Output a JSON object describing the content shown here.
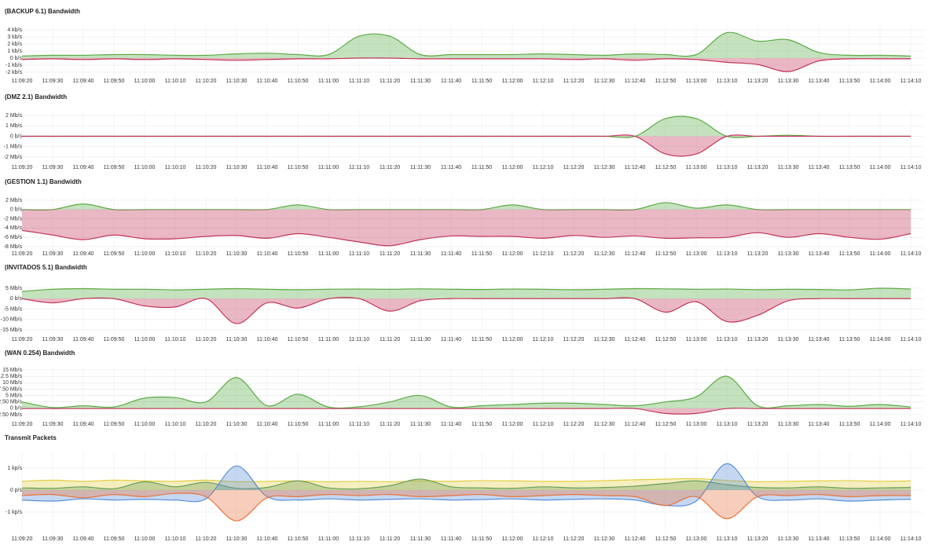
{
  "chart_data": [
    {
      "type": "area",
      "title": "(BACKUP 6.1) Bandwidth",
      "categories": [
        "11:09:20",
        "11:09:30",
        "11:09:40",
        "11:09:50",
        "11:10:00",
        "11:10:10",
        "11:10:20",
        "11:10:30",
        "11:10:40",
        "11:10:50",
        "11:11:00",
        "11:11:10",
        "11:11:20",
        "11:11:30",
        "11:11:40",
        "11:11:50",
        "11:12:00",
        "11:12:10",
        "11:12:20",
        "11:12:30",
        "11:12:40",
        "11:12:50",
        "11:13:00",
        "11:13:10",
        "11:13:20",
        "11:13:30",
        "11:13:40",
        "11:13:50",
        "11:14:00",
        "11:14:10"
      ],
      "series": [
        {
          "color": "#5aac44",
          "values": [
            0.3,
            0.4,
            0.4,
            0.5,
            0.5,
            0.4,
            0.4,
            0.6,
            0.7,
            0.5,
            0.5,
            3.1,
            3.1,
            0.5,
            0.5,
            0.5,
            0.5,
            0.6,
            0.5,
            0.4,
            0.6,
            0.5,
            0.5,
            3.6,
            2.4,
            2.6,
            0.8,
            0.4,
            0.4,
            0.3
          ]
        },
        {
          "color": "#c2345a",
          "values": [
            -0.2,
            -0.1,
            -0.2,
            -0.1,
            -0.2,
            -0.1,
            -0.2,
            -0.3,
            -0.2,
            -0.1,
            -0.1,
            0,
            0,
            -0.1,
            -0.1,
            -0.1,
            -0.1,
            -0.1,
            -0.2,
            -0.1,
            -0.3,
            -0.1,
            -0.2,
            -0.6,
            -0.9,
            -1.9,
            -0.4,
            -0.1,
            -0.1,
            -0.1
          ]
        }
      ],
      "ylim": [
        -2,
        4
      ],
      "yticks": [
        {
          "value": 4,
          "label": "4 kb/s"
        },
        {
          "value": 3,
          "label": "3 kb/s"
        },
        {
          "value": 2,
          "label": "2 kb/s"
        },
        {
          "value": 1,
          "label": "1 kb/s"
        },
        {
          "value": 0,
          "label": "0 b/s"
        },
        {
          "value": -1,
          "label": "-1 kb/s"
        },
        {
          "value": -2,
          "label": "-2 kb/s"
        }
      ],
      "grid": true
    },
    {
      "type": "area",
      "title": "(DMZ 2.1) Bandwidth",
      "categories": [
        "11:09:20",
        "11:09:30",
        "11:09:40",
        "11:09:50",
        "11:10:00",
        "11:10:10",
        "11:10:20",
        "11:10:30",
        "11:10:40",
        "11:10:50",
        "11:11:00",
        "11:11:10",
        "11:11:20",
        "11:11:30",
        "11:11:40",
        "11:11:50",
        "11:12:00",
        "11:12:10",
        "11:12:20",
        "11:12:30",
        "11:12:40",
        "11:12:50",
        "11:13:00",
        "11:13:10",
        "11:13:20",
        "11:13:30",
        "11:13:40",
        "11:13:50",
        "11:14:00",
        "11:14:10"
      ],
      "series": [
        {
          "color": "#5aac44",
          "values": [
            0,
            0,
            0,
            0,
            0,
            0,
            0,
            0,
            0,
            0,
            0,
            0,
            0,
            0,
            0,
            0,
            0,
            0,
            0,
            0,
            0,
            1.7,
            1.7,
            0,
            0,
            0.1,
            0,
            0,
            0,
            0
          ]
        },
        {
          "color": "#c2345a",
          "values": [
            0,
            0,
            0,
            0,
            0,
            0,
            0,
            0,
            0,
            0,
            0,
            0,
            0,
            0,
            0,
            0,
            0,
            0,
            0,
            0,
            0,
            -1.7,
            -1.7,
            0,
            0,
            0,
            0,
            0,
            0,
            0
          ]
        }
      ],
      "ylim": [
        -2,
        2
      ],
      "yticks": [
        {
          "value": 2,
          "label": "2 Mb/s"
        },
        {
          "value": 1,
          "label": "1 Mb/s"
        },
        {
          "value": 0,
          "label": "0 b/s"
        },
        {
          "value": -1,
          "label": "-1 Mb/s"
        },
        {
          "value": -2,
          "label": "-2 Mb/s"
        }
      ],
      "grid": true
    },
    {
      "type": "area",
      "title": "(GESTION 1.1) Bandwidth",
      "categories": [
        "11:09:20",
        "11:09:30",
        "11:09:40",
        "11:09:50",
        "11:10:00",
        "11:10:10",
        "11:10:20",
        "11:10:30",
        "11:10:40",
        "11:10:50",
        "11:11:00",
        "11:11:10",
        "11:11:20",
        "11:11:30",
        "11:11:40",
        "11:11:50",
        "11:12:00",
        "11:12:10",
        "11:12:20",
        "11:12:30",
        "11:12:40",
        "11:12:50",
        "11:13:00",
        "11:13:10",
        "11:13:20",
        "11:13:30",
        "11:13:40",
        "11:13:50",
        "11:14:00",
        "11:14:10"
      ],
      "series": [
        {
          "color": "#5aac44",
          "values": [
            0,
            0,
            1.2,
            0,
            0,
            0,
            0,
            0,
            0,
            1.0,
            0,
            0,
            0,
            0,
            0,
            0,
            1.0,
            0,
            0,
            0,
            0,
            1.5,
            0.3,
            1.0,
            0,
            0,
            0,
            0,
            0,
            0
          ]
        },
        {
          "color": "#c2345a",
          "values": [
            -4.5,
            -5.5,
            -6.5,
            -5.5,
            -6.3,
            -6.3,
            -5.8,
            -5.6,
            -6.2,
            -5.2,
            -6.0,
            -7.0,
            -7.8,
            -6.5,
            -5.7,
            -5.8,
            -5.8,
            -6.2,
            -5.6,
            -6.0,
            -5.7,
            -6.2,
            -6.1,
            -6.0,
            -5.0,
            -6.0,
            -5.2,
            -6.0,
            -6.4,
            -5.2
          ]
        }
      ],
      "ylim": [
        -8,
        2
      ],
      "yticks": [
        {
          "value": 2,
          "label": "2 Mb/s"
        },
        {
          "value": 0,
          "label": "0 b/s"
        },
        {
          "value": -2,
          "label": "-2 Mb/s"
        },
        {
          "value": -4,
          "label": "-4 Mb/s"
        },
        {
          "value": -6,
          "label": "-6 Mb/s"
        },
        {
          "value": -8,
          "label": "-8 Mb/s"
        }
      ],
      "grid": true
    },
    {
      "type": "area",
      "title": "(INVITADOS 5.1) Bandwidth",
      "categories": [
        "11:09:20",
        "11:09:30",
        "11:09:40",
        "11:09:50",
        "11:10:00",
        "11:10:10",
        "11:10:20",
        "11:10:30",
        "11:10:40",
        "11:10:50",
        "11:11:00",
        "11:11:10",
        "11:11:20",
        "11:11:30",
        "11:11:40",
        "11:11:50",
        "11:12:00",
        "11:12:10",
        "11:12:20",
        "11:12:30",
        "11:12:40",
        "11:12:50",
        "11:13:00",
        "11:13:10",
        "11:13:20",
        "11:13:30",
        "11:13:40",
        "11:13:50",
        "11:14:00",
        "11:14:10"
      ],
      "series": [
        {
          "color": "#5aac44",
          "values": [
            3.5,
            4.5,
            4.8,
            4.5,
            4.5,
            4.2,
            4.5,
            4.8,
            4.5,
            4.3,
            4.5,
            4.6,
            4.5,
            4.7,
            4.5,
            4.4,
            4.6,
            4.5,
            4.3,
            4.5,
            4.8,
            4.7,
            4.5,
            4.6,
            4.3,
            4.5,
            4.4,
            4.2,
            5.0,
            4.6
          ]
        },
        {
          "color": "#c2345a",
          "values": [
            0,
            -2,
            0,
            0,
            -3.5,
            -4,
            0,
            -12,
            -2,
            -4.5,
            0,
            0,
            -6,
            -1,
            0,
            0,
            0,
            0,
            0,
            0,
            0,
            -6.5,
            -1.5,
            -11,
            -8,
            -1,
            0,
            0,
            0,
            0
          ]
        }
      ],
      "ylim": [
        -15,
        5
      ],
      "yticks": [
        {
          "value": 5,
          "label": "5 Mb/s"
        },
        {
          "value": 0,
          "label": "0 b/s"
        },
        {
          "value": -5,
          "label": "-5 Mb/s"
        },
        {
          "value": -10,
          "label": "-10 Mb/s"
        },
        {
          "value": -15,
          "label": "-15 Mb/s"
        }
      ],
      "grid": true
    },
    {
      "type": "area",
      "title": "(WAN 0.254) Bandwidth",
      "categories": [
        "11:09:20",
        "11:09:30",
        "11:09:40",
        "11:09:50",
        "11:10:00",
        "11:10:10",
        "11:10:20",
        "11:10:30",
        "11:10:40",
        "11:10:50",
        "11:11:00",
        "11:11:10",
        "11:11:20",
        "11:11:30",
        "11:11:40",
        "11:11:50",
        "11:12:00",
        "11:12:10",
        "11:12:20",
        "11:12:30",
        "11:12:40",
        "11:12:50",
        "11:13:00",
        "11:13:10",
        "11:13:20",
        "11:13:30",
        "11:13:40",
        "11:13:50",
        "11:14:00",
        "11:14:10"
      ],
      "series": [
        {
          "color": "#5aac44",
          "values": [
            2.5,
            0.3,
            1.0,
            0.5,
            4.0,
            4.2,
            2.5,
            12,
            1.0,
            5.5,
            0.5,
            0.6,
            2.5,
            5,
            0.5,
            1.0,
            1.5,
            2.0,
            2.0,
            1.5,
            1.0,
            2.5,
            4.5,
            12.5,
            1.0,
            1.0,
            1.5,
            0.8,
            1.5,
            0.5
          ]
        },
        {
          "color": "#c2345a",
          "values": [
            -0.1,
            -0.1,
            -0.1,
            -0.1,
            -0.1,
            -0.1,
            -0.1,
            -0.1,
            -0.1,
            -0.1,
            -0.1,
            -0.1,
            -0.1,
            -0.1,
            -0.1,
            -0.1,
            -0.1,
            -0.1,
            -0.1,
            -0.1,
            -0.1,
            -2,
            -2,
            -0.1,
            -0.1,
            -0.1,
            -0.1,
            -0.1,
            -0.1,
            -0.1
          ]
        }
      ],
      "ylim": [
        -2.5,
        15
      ],
      "yticks": [
        {
          "value": 15,
          "label": "15 Mb/s"
        },
        {
          "value": 12.5,
          "label": "12.5 Mb/s"
        },
        {
          "value": 10,
          "label": "10 Mb/s"
        },
        {
          "value": 7.5,
          "label": "7.50 Mb/s"
        },
        {
          "value": 5,
          "label": "5 Mb/s"
        },
        {
          "value": 2.5,
          "label": "2.50 Mb/s"
        },
        {
          "value": 0,
          "label": "0 b/s"
        },
        {
          "value": -2.5,
          "label": "-2.50 Mb/s"
        }
      ],
      "grid": true
    },
    {
      "type": "area",
      "title": "Transmit Packets",
      "categories": [
        "11:09:20",
        "11:09:30",
        "11:09:40",
        "11:09:50",
        "11:10:00",
        "11:10:10",
        "11:10:20",
        "11:10:30",
        "11:10:40",
        "11:10:50",
        "11:11:00",
        "11:11:10",
        "11:11:20",
        "11:11:30",
        "11:11:40",
        "11:11:50",
        "11:12:00",
        "11:12:10",
        "11:12:20",
        "11:12:30",
        "11:12:40",
        "11:12:50",
        "11:13:00",
        "11:13:10",
        "11:13:20",
        "11:13:30",
        "11:13:40",
        "11:13:50",
        "11:14:00",
        "11:14:10"
      ],
      "series": [
        {
          "color": "#e3cf45",
          "values": [
            400,
            450,
            400,
            450,
            420,
            400,
            450,
            380,
            400,
            420,
            380,
            400,
            380,
            420,
            400,
            430,
            420,
            400,
            400,
            430,
            470,
            500,
            520,
            440,
            380,
            400,
            420,
            430,
            400,
            420
          ]
        },
        {
          "color": "#6a9e5a",
          "values": [
            100,
            80,
            150,
            60,
            380,
            150,
            350,
            80,
            120,
            420,
            100,
            60,
            200,
            500,
            150,
            100,
            80,
            150,
            100,
            120,
            180,
            300,
            420,
            250,
            120,
            100,
            150,
            80,
            100,
            120
          ]
        },
        {
          "color": "#5b8fd6",
          "values": [
            -450,
            -500,
            -400,
            -450,
            -420,
            -450,
            -400,
            1100,
            -300,
            -450,
            -400,
            -450,
            -420,
            -400,
            -450,
            -430,
            -400,
            -450,
            -420,
            -400,
            -450,
            -700,
            -500,
            1200,
            -300,
            -450,
            -400,
            -500,
            -450,
            -420
          ]
        },
        {
          "color": "#e8743b",
          "values": [
            -250,
            -200,
            -350,
            -200,
            -300,
            -150,
            -300,
            -1400,
            -350,
            -300,
            -200,
            -250,
            -200,
            -300,
            -250,
            -200,
            -300,
            -250,
            -200,
            -250,
            -300,
            -700,
            -300,
            -1300,
            -300,
            -250,
            -200,
            -300,
            -250,
            -250
          ]
        }
      ],
      "ylim": [
        -2000,
        1750
      ],
      "yticks": [
        {
          "value": 1000,
          "label": "1 kp/s"
        },
        {
          "value": 0,
          "label": "0 p/s"
        },
        {
          "value": -1000,
          "label": "-1 kp/s"
        }
      ],
      "grid": true
    }
  ]
}
